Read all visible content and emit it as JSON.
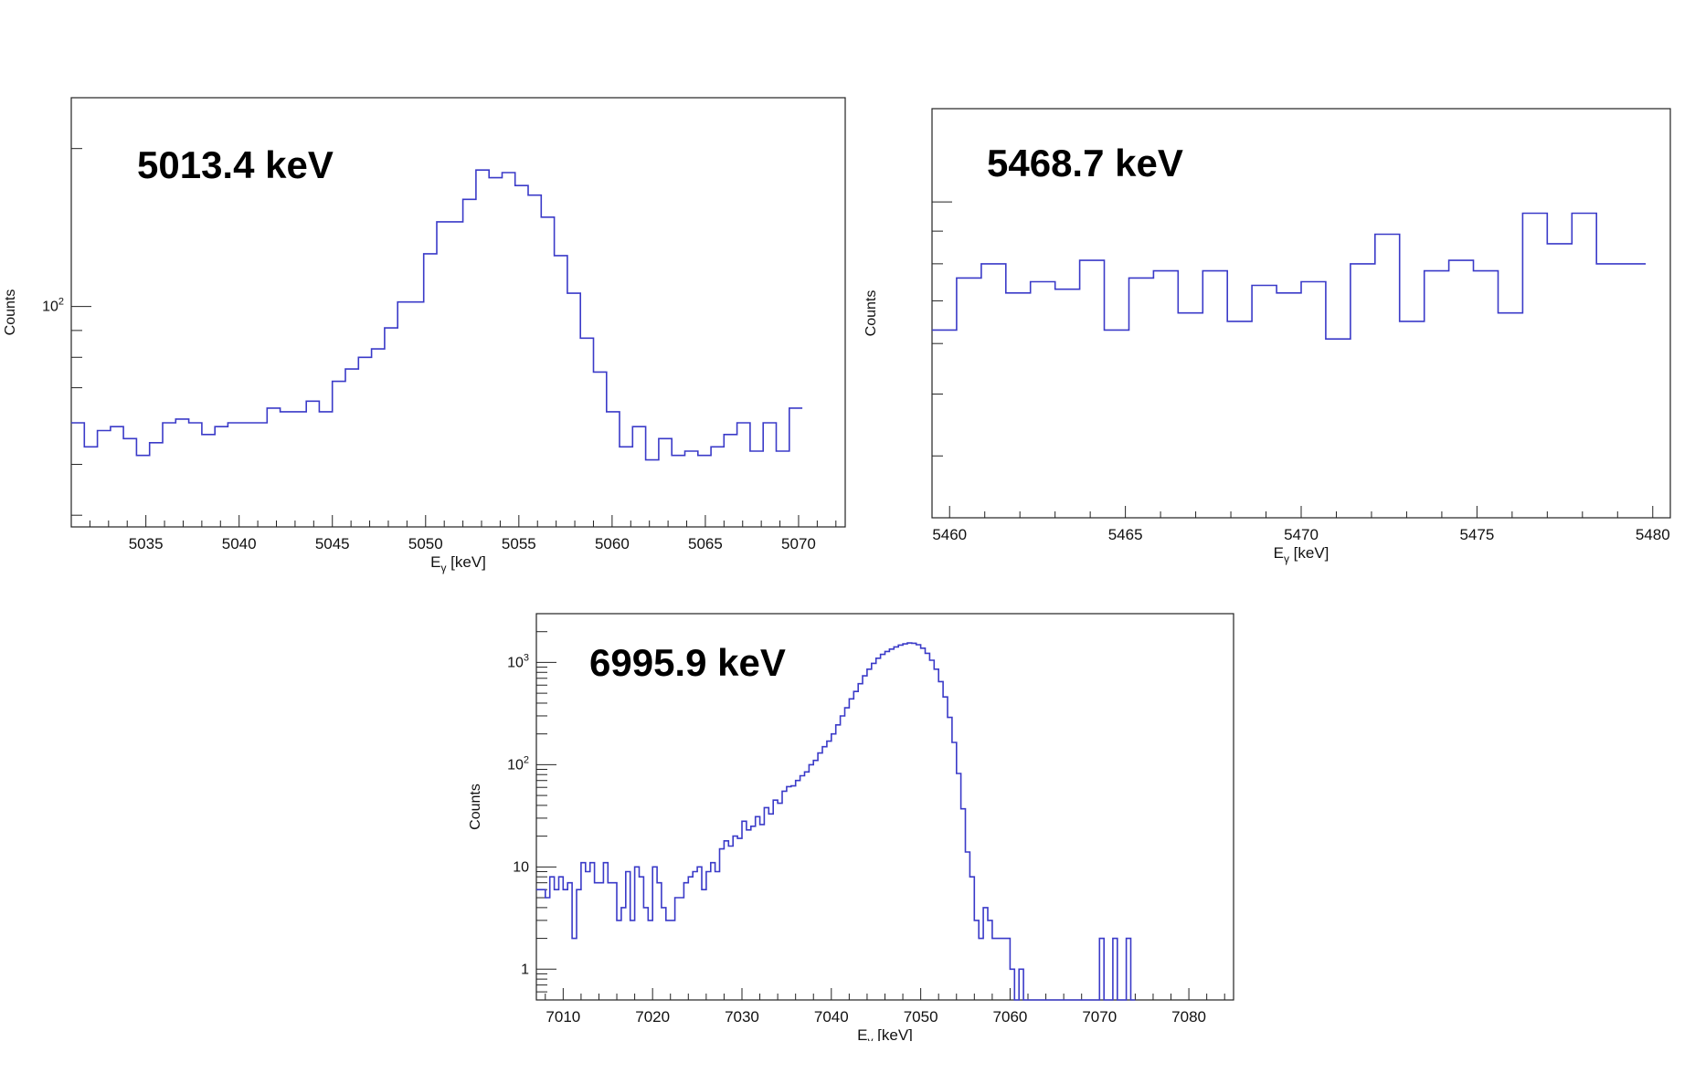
{
  "chart_data": [
    {
      "type": "histogram",
      "title": "",
      "annotation": "5013.4 keV",
      "xlabel": "E",
      "xlabel_subscript": "γ",
      "xlabel_unit": " [keV]",
      "ylabel": "Counts",
      "yscale": "log",
      "xlim": [
        5031,
        5072.5
      ],
      "ylim": [
        38,
        250
      ],
      "xticks": [
        5035,
        5040,
        5045,
        5050,
        5055,
        5060,
        5065,
        5070
      ],
      "ytick_labels": [
        {
          "value": 100,
          "label": "10",
          "sup": "2"
        }
      ],
      "bin_width": 0.7,
      "bin_start": 5031,
      "counts": [
        60,
        54,
        58,
        59,
        56,
        52,
        55,
        60,
        61,
        60,
        57,
        59,
        60,
        60,
        60,
        64,
        63,
        63,
        66,
        63,
        72,
        76,
        80,
        83,
        91,
        102,
        102,
        126,
        145,
        145,
        160,
        182,
        176,
        180,
        170,
        163,
        148,
        125,
        106,
        87,
        75,
        63,
        54,
        59,
        51,
        56,
        52,
        53,
        52,
        54,
        57,
        60,
        53,
        60,
        53,
        64
      ]
    },
    {
      "type": "histogram",
      "title": "",
      "annotation": "5468.7 keV",
      "xlabel": "E",
      "xlabel_subscript": "γ",
      "xlabel_unit": " [keV]",
      "ylabel": "Counts",
      "yscale": "log",
      "xlim": [
        5459.5,
        5480.5
      ],
      "ylim": [
        3.2,
        14
      ],
      "xticks": [
        5460,
        5465,
        5470,
        5475,
        5480
      ],
      "ytick_labels": [],
      "bin_width": 0.7,
      "bin_start": 5459.5,
      "counts": [
        6.3,
        7.6,
        8,
        7.2,
        7.5,
        7.3,
        8.1,
        6.3,
        7.6,
        7.8,
        6.7,
        7.8,
        6.5,
        7.4,
        7.2,
        7.5,
        6.1,
        8,
        8.9,
        6.5,
        7.8,
        8.1,
        7.8,
        6.7,
        9.6,
        8.6,
        9.6,
        8,
        8
      ]
    },
    {
      "type": "histogram",
      "title": "",
      "annotation": "6995.9 keV",
      "xlabel": "E",
      "xlabel_subscript": "γ",
      "xlabel_unit": " [keV]",
      "ylabel": "Counts",
      "yscale": "log",
      "xlim": [
        7007,
        7085
      ],
      "ylim": [
        0.5,
        3000
      ],
      "xticks": [
        7010,
        7020,
        7030,
        7040,
        7050,
        7060,
        7070,
        7080
      ],
      "ytick_labels": [
        {
          "value": 1,
          "label": "1",
          "sup": ""
        },
        {
          "value": 10,
          "label": "10",
          "sup": ""
        },
        {
          "value": 100,
          "label": "10",
          "sup": "2"
        },
        {
          "value": 1000,
          "label": "10",
          "sup": "3"
        }
      ],
      "bin_width": 0.5,
      "bin_start": 7007,
      "counts": [
        6,
        6,
        5,
        8,
        6,
        8,
        6,
        7,
        2,
        6,
        11,
        9,
        11,
        7,
        7,
        11,
        7,
        7,
        3,
        4,
        9,
        3,
        10,
        8,
        4,
        3,
        10,
        7,
        4,
        3,
        3,
        5,
        5,
        7,
        8,
        9,
        10,
        6,
        9,
        11,
        9,
        15,
        18,
        16,
        20,
        19,
        28,
        23,
        25,
        31,
        26,
        38,
        33,
        45,
        42,
        55,
        61,
        62,
        70,
        78,
        85,
        100,
        110,
        130,
        150,
        170,
        200,
        245,
        300,
        360,
        440,
        520,
        620,
        740,
        860,
        980,
        1100,
        1200,
        1280,
        1350,
        1420,
        1480,
        1520,
        1550,
        1540,
        1490,
        1380,
        1230,
        1050,
        860,
        650,
        460,
        290,
        165,
        82,
        37,
        14,
        8,
        3,
        2,
        4,
        3,
        2,
        2,
        2,
        2,
        1,
        0,
        1,
        0,
        0,
        0,
        0,
        0,
        0,
        0,
        0,
        0,
        0,
        0,
        0,
        0,
        0,
        0,
        0,
        0,
        2,
        0,
        0,
        2,
        0,
        0,
        2,
        0
      ]
    }
  ]
}
